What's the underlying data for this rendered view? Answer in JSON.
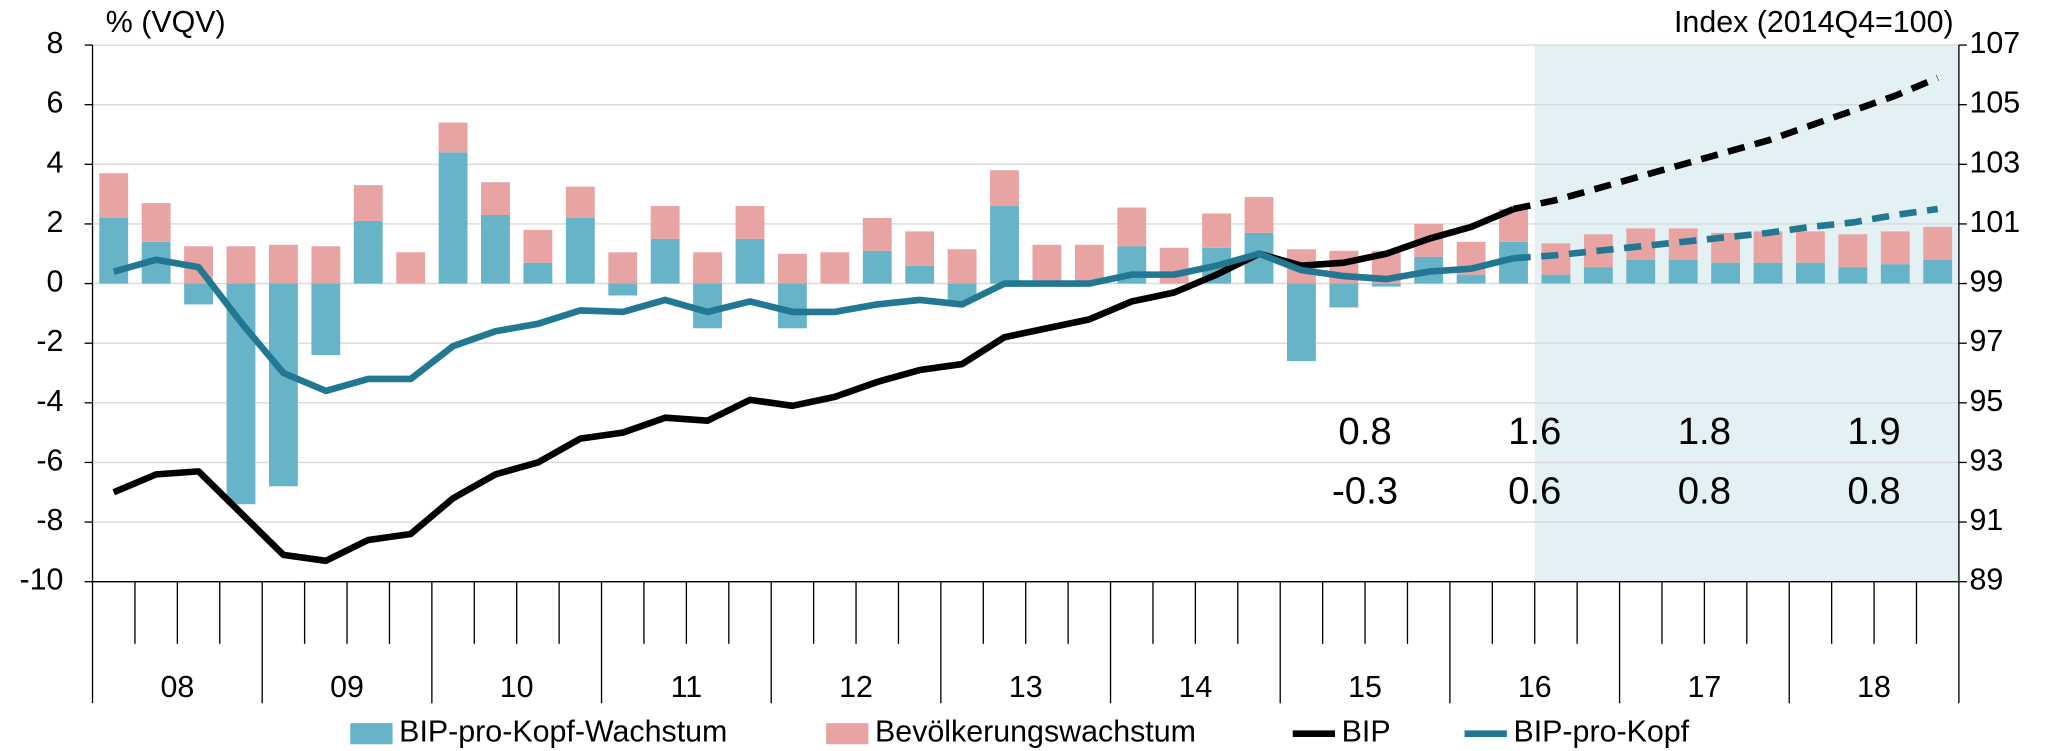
{
  "chart_data": {
    "type": "combo",
    "y_label": "% (VQV)",
    "y2_label": "Index (2014Q4=100)",
    "x_group_labels": [
      "08",
      "09",
      "10",
      "11",
      "12",
      "13",
      "14",
      "15",
      "16",
      "17",
      "18"
    ],
    "forecast_start": 34,
    "forecast_color": "#e3f1f4",
    "ylim": [
      -10,
      8
    ],
    "yticks": [
      -10,
      -8,
      -6,
      -4,
      -2,
      0,
      2,
      4,
      6,
      8
    ],
    "y2lim": [
      89,
      107
    ],
    "y2ticks": [
      89,
      91,
      93,
      95,
      97,
      99,
      101,
      103,
      105,
      107
    ],
    "grid": true,
    "series": [
      {
        "name": "BIP-pro-Kopf-Wachstum",
        "type": "bar",
        "color": "#67b3c7",
        "values": [
          2.2,
          1.4,
          -0.7,
          -7.4,
          -6.8,
          -2.4,
          2.1,
          0,
          4.4,
          2.3,
          0.7,
          2.2,
          -0.4,
          1.5,
          -1.5,
          1.5,
          -1.5,
          0,
          1.1,
          0.6,
          -0.6,
          2.6,
          0,
          0,
          1.25,
          0,
          1.2,
          1.7,
          -2.6,
          -0.8,
          -0.1,
          0.9,
          0.3,
          1.4,
          0.3,
          0.55,
          0.8,
          0.8,
          0.7,
          0.7,
          0.7,
          0.55,
          0.65,
          0.8
        ]
      },
      {
        "name": "Bevölkerungswachstum",
        "type": "bar",
        "color": "#e8a3a3",
        "values": [
          1.5,
          1.3,
          1.25,
          1.25,
          1.3,
          1.25,
          1.2,
          1.05,
          1.0,
          1.1,
          1.1,
          1.05,
          1.05,
          1.1,
          1.05,
          1.1,
          1.0,
          1.05,
          1.1,
          1.15,
          1.15,
          1.2,
          1.3,
          1.3,
          1.3,
          1.2,
          1.15,
          1.2,
          1.15,
          1.1,
          1.1,
          1.1,
          1.1,
          1.1,
          1.05,
          1.1,
          1.05,
          1.05,
          1.0,
          1.05,
          1.05,
          1.1,
          1.1,
          1.1
        ]
      },
      {
        "name": "BIP",
        "type": "line",
        "axis": "y2",
        "color": "#000000",
        "values": [
          92.0,
          92.6,
          92.7,
          91.3,
          89.9,
          89.7,
          90.4,
          90.6,
          91.8,
          92.6,
          93.0,
          93.8,
          94.0,
          94.5,
          94.4,
          95.1,
          94.9,
          95.2,
          95.7,
          96.1,
          96.3,
          97.2,
          97.5,
          97.8,
          98.4,
          98.7,
          99.3,
          100.0,
          99.6,
          99.7,
          100.0,
          100.5,
          100.9,
          101.5,
          101.8,
          102.2,
          102.6,
          103.0,
          103.4,
          103.8,
          104.3,
          104.8,
          105.3,
          105.9
        ]
      },
      {
        "name": "BIP-pro-Kopf",
        "type": "line",
        "axis": "y2",
        "color": "#227892",
        "values": [
          99.4,
          99.8,
          99.55,
          97.7,
          96.0,
          95.4,
          95.8,
          95.8,
          96.9,
          97.4,
          97.65,
          98.1,
          98.05,
          98.45,
          98.05,
          98.4,
          98.05,
          98.05,
          98.3,
          98.45,
          98.3,
          99.0,
          99.0,
          99.0,
          99.3,
          99.3,
          99.6,
          100.0,
          99.45,
          99.25,
          99.15,
          99.4,
          99.5,
          99.85,
          99.95,
          100.1,
          100.25,
          100.4,
          100.55,
          100.7,
          100.9,
          101.05,
          101.3,
          101.5
        ]
      }
    ],
    "annual_growth": {
      "years": [
        "15",
        "16",
        "17",
        "18"
      ],
      "BIP": [
        0.8,
        1.6,
        1.8,
        1.9
      ],
      "BIP-pro-Kopf": [
        -0.3,
        0.6,
        0.8,
        0.8
      ]
    }
  }
}
